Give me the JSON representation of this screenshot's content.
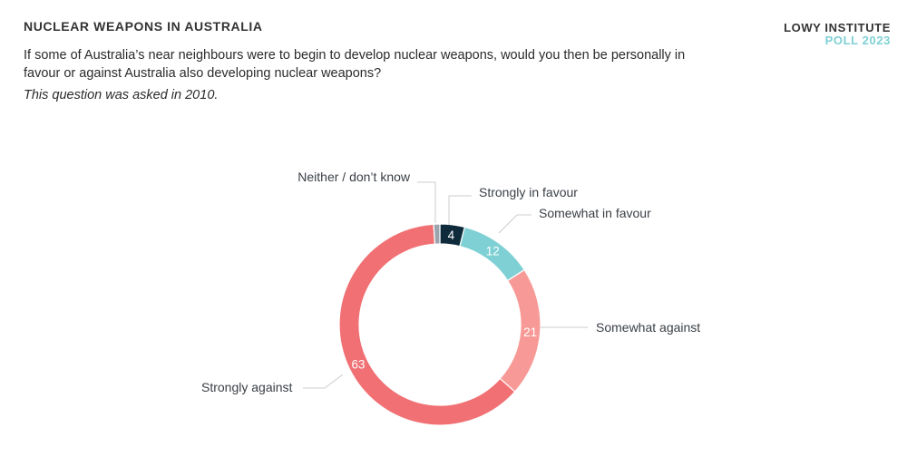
{
  "header": {
    "title": "NUCLEAR WEAPONS IN AUSTRALIA",
    "question": "If some of Australia’s near neighbours were to begin to develop nuclear weapons, would you then be personally in favour or against Australia also developing nuclear weapons?",
    "note": "This question was asked in 2010."
  },
  "brand": {
    "org": "LOWY INSTITUTE",
    "poll": "POLL 2023",
    "org_color": "#333333",
    "poll_color": "#7fd0d4"
  },
  "chart_data": {
    "type": "pie",
    "variant": "donut",
    "title": "NUCLEAR WEAPONS IN AUSTRALIA",
    "slices": [
      {
        "label": "Strongly in favour",
        "value": 4,
        "value_label": "4",
        "color": "#0e2a3b"
      },
      {
        "label": "Somewhat in favour",
        "value": 12,
        "value_label": "12",
        "color": "#7fd0d4"
      },
      {
        "label": "Somewhat against",
        "value": 21,
        "value_label": "21",
        "color": "#f79a97"
      },
      {
        "label": "Strongly against",
        "value": 63,
        "value_label": "63",
        "color": "#f07073"
      },
      {
        "label": "Neither / don’t know",
        "value": 1,
        "value_label": "",
        "color": "#9aa4ad"
      }
    ]
  }
}
